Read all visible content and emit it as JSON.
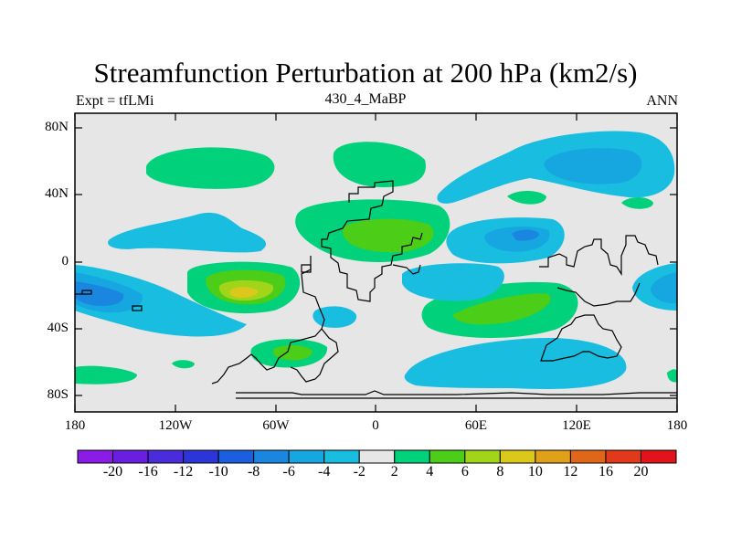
{
  "title": "Streamfunction Perturbation at 200 hPa (km2/s)",
  "left_string": "Expt = tfLMi",
  "center_string": "430_4_MaBP",
  "right_string": "ANN",
  "lat_ticks": [
    "80N",
    "40N",
    "0",
    "40S",
    "80S"
  ],
  "lon_ticks": [
    "180",
    "120W",
    "60W",
    "0",
    "60E",
    "120E",
    "180"
  ],
  "colorbar": {
    "labels": [
      "-20",
      "-16",
      "-12",
      "-10",
      "-8",
      "-6",
      "-4",
      "-2",
      "2",
      "4",
      "6",
      "8",
      "10",
      "12",
      "16",
      "20"
    ],
    "colors": [
      "#8a1ce6",
      "#6a1ee0",
      "#4a2cdc",
      "#2c36d8",
      "#1a5fe0",
      "#1a86e0",
      "#16a6e0",
      "#18bde0",
      "#e6e6e6",
      "#00d17a",
      "#4ccd17",
      "#a2d41a",
      "#dcc81a",
      "#e0a01a",
      "#e0661a",
      "#e03a1a",
      "#e0141a"
    ]
  },
  "colors": {
    "background": "#e6e6e6",
    "neg_2_4": "#18bde0",
    "neg_4_6": "#16a6e0",
    "neg_6_8": "#1a86e0",
    "pos_2_4": "#00d17a",
    "pos_4_6": "#4ccd17",
    "pos_6_8": "#a2d41a",
    "pos_8_10": "#dcc81a"
  }
}
